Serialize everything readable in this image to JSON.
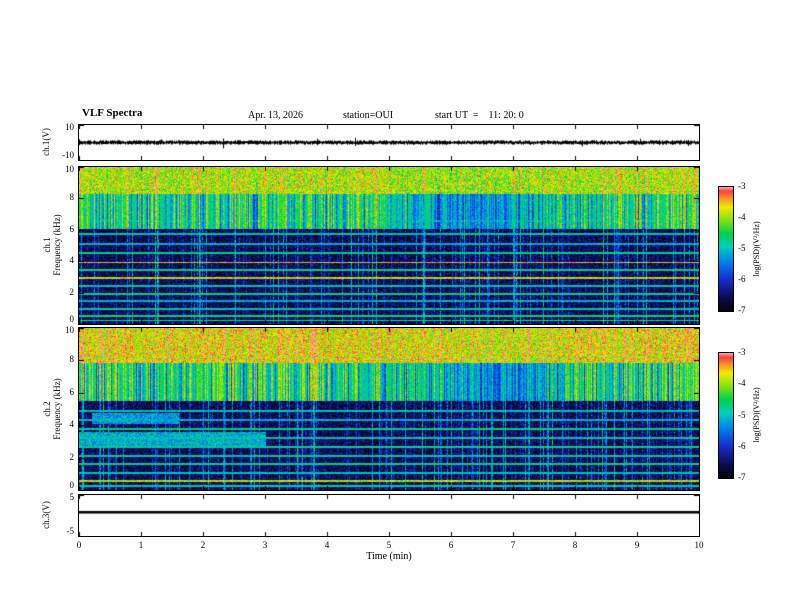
{
  "header": {
    "title": "VLF Spectra",
    "date": "Apr. 13, 2026",
    "station": "station=OUI",
    "start_ut": "start UT  =    11: 20: 0"
  },
  "xaxis": {
    "label": "Time (min)",
    "min": 0,
    "max": 10,
    "ticks": [
      0,
      1,
      2,
      3,
      4,
      5,
      6,
      7,
      8,
      9,
      10
    ]
  },
  "colorbars": [
    {
      "label": "log(PSD)(V²/Hz)",
      "max": -3,
      "min": -7,
      "ticks": [
        -3,
        -4,
        -5,
        -6,
        -7
      ]
    },
    {
      "label": "log(PSD)(V²/Hz)",
      "max": -3,
      "min": -7,
      "ticks": [
        -3,
        -4,
        -5,
        -6,
        -7
      ]
    }
  ],
  "chart_data": [
    {
      "type": "line",
      "name": "ch1-waveform",
      "ylabel": "ch.1(V)",
      "ylim": [
        -10,
        10
      ],
      "yticks": [
        10,
        -10
      ],
      "x_range_min": [
        0,
        10
      ],
      "seed": 7,
      "signal": {
        "character": "broadband noise",
        "mean_V": 0,
        "typical_amplitude_V": 1.3,
        "spike_amplitude_V": 3.5
      }
    },
    {
      "type": "heatmap",
      "name": "ch1-spectrogram",
      "ylabel": "ch.1 Frequency (kHz)",
      "ylabel_line1": "ch.1",
      "ylabel_line2": "Frequency (kHz)",
      "ylim": [
        0,
        10
      ],
      "yticks": [
        10,
        8,
        6,
        4,
        2,
        0
      ],
      "value_scale": {
        "label": "log(PSD)(V²/Hz)",
        "min": -7,
        "max": -3
      },
      "features": {
        "seed": 11,
        "dense_extra": 0,
        "dense_band_bottom_khz": 8.3,
        "streak_band_bottom_khz": 6.1,
        "quiet_dip": {
          "center_min": 6.4,
          "width_min": 1.1,
          "depth": 0.5
        },
        "vertical_streak_probability": 0.09,
        "horizontal_lines": [
          {
            "khz": 9.93,
            "intensity": 0.8
          },
          {
            "khz": 6.6,
            "intensity": 0.5
          },
          {
            "khz": 5.75,
            "intensity": 0.55
          },
          {
            "khz": 5.15,
            "intensity": 0.5
          },
          {
            "khz": 4.55,
            "intensity": 0.6
          },
          {
            "khz": 3.95,
            "intensity": 0.92
          },
          {
            "khz": 3.45,
            "intensity": 0.6
          },
          {
            "khz": 2.95,
            "intensity": 0.88
          },
          {
            "khz": 2.45,
            "intensity": 0.55
          },
          {
            "khz": 1.95,
            "intensity": 0.6
          },
          {
            "khz": 1.5,
            "intensity": 0.5
          },
          {
            "khz": 1.0,
            "intensity": 0.55
          },
          {
            "khz": 0.55,
            "intensity": 0.62
          },
          {
            "khz": 0.25,
            "intensity": 0.68
          }
        ],
        "blobs": []
      }
    },
    {
      "type": "heatmap",
      "name": "ch2-spectrogram",
      "ylabel": "ch.2 Frequency (kHz)",
      "ylabel_line1": "ch.2",
      "ylabel_line2": "Frequency (kHz)",
      "ylim": [
        0,
        10
      ],
      "yticks": [
        10,
        8,
        6,
        4,
        2,
        0
      ],
      "value_scale": {
        "label": "log(PSD)(V²/Hz)",
        "min": -7,
        "max": -3
      },
      "features": {
        "seed": 23,
        "dense_extra": 0.05,
        "dense_band_bottom_khz": 7.9,
        "streak_band_bottom_khz": 5.5,
        "quiet_dip": {
          "center_min": 6.6,
          "width_min": 1.0,
          "depth": 0.45
        },
        "vertical_streak_probability": 0.09,
        "horizontal_lines": [
          {
            "khz": 9.93,
            "intensity": 0.82
          },
          {
            "khz": 4.9,
            "intensity": 0.55
          },
          {
            "khz": 4.35,
            "intensity": 0.5
          },
          {
            "khz": 3.8,
            "intensity": 0.6
          },
          {
            "khz": 3.25,
            "intensity": 0.55
          },
          {
            "khz": 2.7,
            "intensity": 0.6
          },
          {
            "khz": 2.15,
            "intensity": 0.55
          },
          {
            "khz": 1.65,
            "intensity": 0.6
          },
          {
            "khz": 1.1,
            "intensity": 0.55
          },
          {
            "khz": 0.6,
            "intensity": 0.85
          },
          {
            "khz": 0.3,
            "intensity": 0.6
          }
        ],
        "blobs": [
          {
            "t0": 0,
            "t1": 3.0,
            "f0": 2.6,
            "f1": 3.6,
            "intensity": 0.5
          },
          {
            "t0": 0.2,
            "t1": 1.6,
            "f0": 4.1,
            "f1": 4.8,
            "intensity": 0.45
          }
        ]
      }
    },
    {
      "type": "line",
      "name": "ch3-waveform",
      "ylabel": "ch.3(V)",
      "ylim": [
        -5,
        5
      ],
      "yticks": [
        5,
        -5
      ],
      "x_range_min": [
        0,
        10
      ],
      "seed": 9,
      "signal": {
        "character": "constant",
        "mean_V": 0.8,
        "typical_amplitude_V": 0,
        "spike_amplitude_V": 0
      }
    }
  ]
}
